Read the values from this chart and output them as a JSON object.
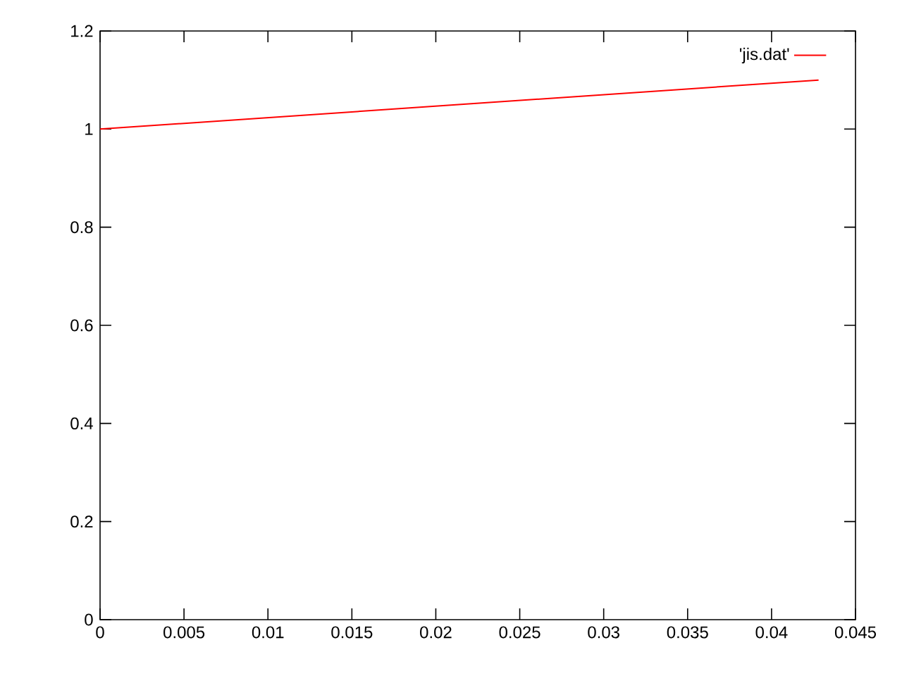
{
  "chart_data": {
    "type": "line",
    "x": [
      0,
      0.0428
    ],
    "series": [
      {
        "name": "'jis.dat'",
        "color": "#ff0000",
        "values": [
          1,
          1.1
        ]
      }
    ],
    "xlim": [
      0,
      0.045
    ],
    "ylim": [
      0,
      1.2
    ],
    "xticks": [
      0,
      0.005,
      0.01,
      0.015,
      0.02,
      0.025,
      0.03,
      0.035,
      0.04,
      0.045
    ],
    "yticks": [
      0,
      0.2,
      0.4,
      0.6,
      0.8,
      1,
      1.2
    ],
    "legend": "top right",
    "line_style": "solid"
  }
}
